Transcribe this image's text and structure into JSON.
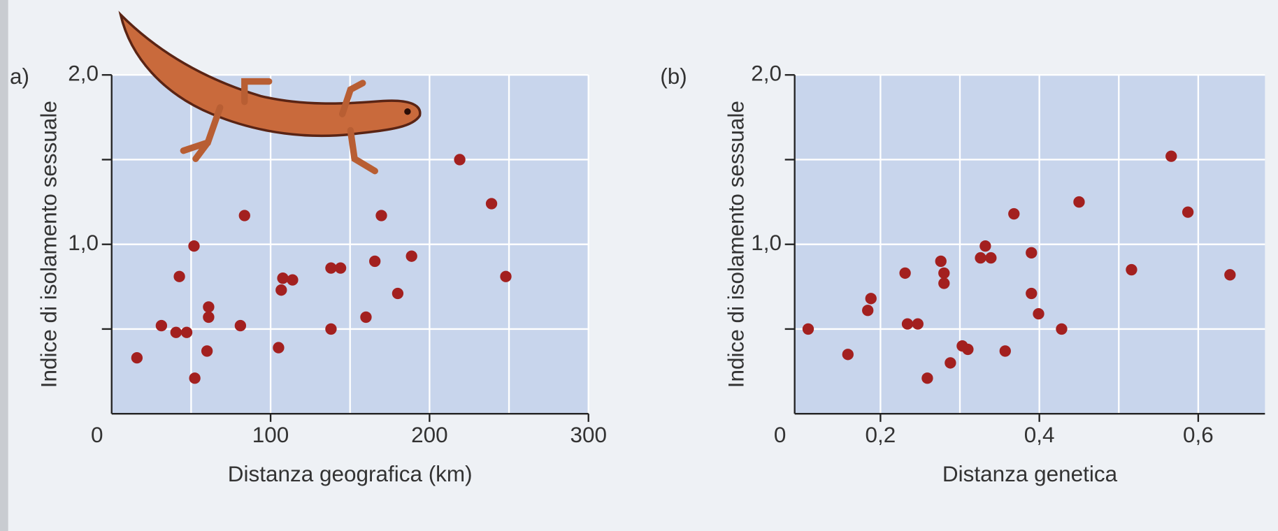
{
  "chart_data": [
    {
      "type": "scatter",
      "panel_label": "a)",
      "y_label": "Indice di isolamento sessuale",
      "x_label": "Distanza geografica (km)",
      "origin_label": "0",
      "color": "#a3201f",
      "grid": true,
      "xlim": [
        0,
        300
      ],
      "ylim": [
        0,
        2
      ],
      "xticks": [
        100,
        200,
        300
      ],
      "yticks": [
        {
          "value": 1,
          "label": "1,0"
        },
        {
          "value": 2,
          "label": "2,0"
        }
      ],
      "x_minor_grid": [
        50,
        150,
        250
      ],
      "y_minor_grid": [
        0.5,
        1.5
      ],
      "x": [
        15.9,
        31.3,
        40.5,
        47.2,
        42.6,
        51.8,
        52.3,
        60,
        61,
        61,
        81,
        83.6,
        105,
        106.7,
        107.7,
        113.8,
        138,
        144,
        138,
        160,
        165.6,
        169.7,
        180,
        188.7,
        219,
        239,
        248
      ],
      "y": [
        0.33,
        0.52,
        0.48,
        0.48,
        0.81,
        0.99,
        0.21,
        0.37,
        0.63,
        0.57,
        0.52,
        1.17,
        0.39,
        0.73,
        0.8,
        0.79,
        0.86,
        0.86,
        0.5,
        0.57,
        0.9,
        1.17,
        0.71,
        0.93,
        1.5,
        1.24,
        0.81
      ]
    },
    {
      "type": "scatter",
      "panel_label": "(b)",
      "y_label": "Indice di isolamento sessuale",
      "x_label": "Distanza genetica",
      "origin_label": "0",
      "color": "#a3201f",
      "grid": true,
      "xlim": [
        0.092,
        0.684
      ],
      "ylim": [
        0,
        2
      ],
      "xticks": [
        {
          "value": 0.2,
          "label": "0,2"
        },
        {
          "value": 0.4,
          "label": "0,4"
        },
        {
          "value": 0.6,
          "label": "0,6"
        }
      ],
      "yticks": [
        {
          "value": 1,
          "label": "1,0"
        },
        {
          "value": 2,
          "label": "2,0"
        }
      ],
      "x_minor_grid": [
        0.3,
        0.5
      ],
      "y_minor_grid": [
        0.5,
        1.5
      ],
      "x": [
        0.109,
        0.159,
        0.188,
        0.184,
        0.231,
        0.234,
        0.247,
        0.259,
        0.276,
        0.28,
        0.28,
        0.288,
        0.303,
        0.31,
        0.326,
        0.332,
        0.339,
        0.357,
        0.368,
        0.39,
        0.39,
        0.399,
        0.428,
        0.45,
        0.516,
        0.566,
        0.587,
        0.64
      ],
      "y": [
        0.5,
        0.35,
        0.68,
        0.61,
        0.83,
        0.53,
        0.53,
        0.21,
        0.9,
        0.83,
        0.77,
        0.3,
        0.4,
        0.38,
        0.92,
        0.99,
        0.92,
        0.37,
        1.18,
        0.95,
        0.71,
        0.59,
        0.5,
        1.25,
        0.85,
        1.52,
        1.19,
        0.82
      ]
    }
  ]
}
